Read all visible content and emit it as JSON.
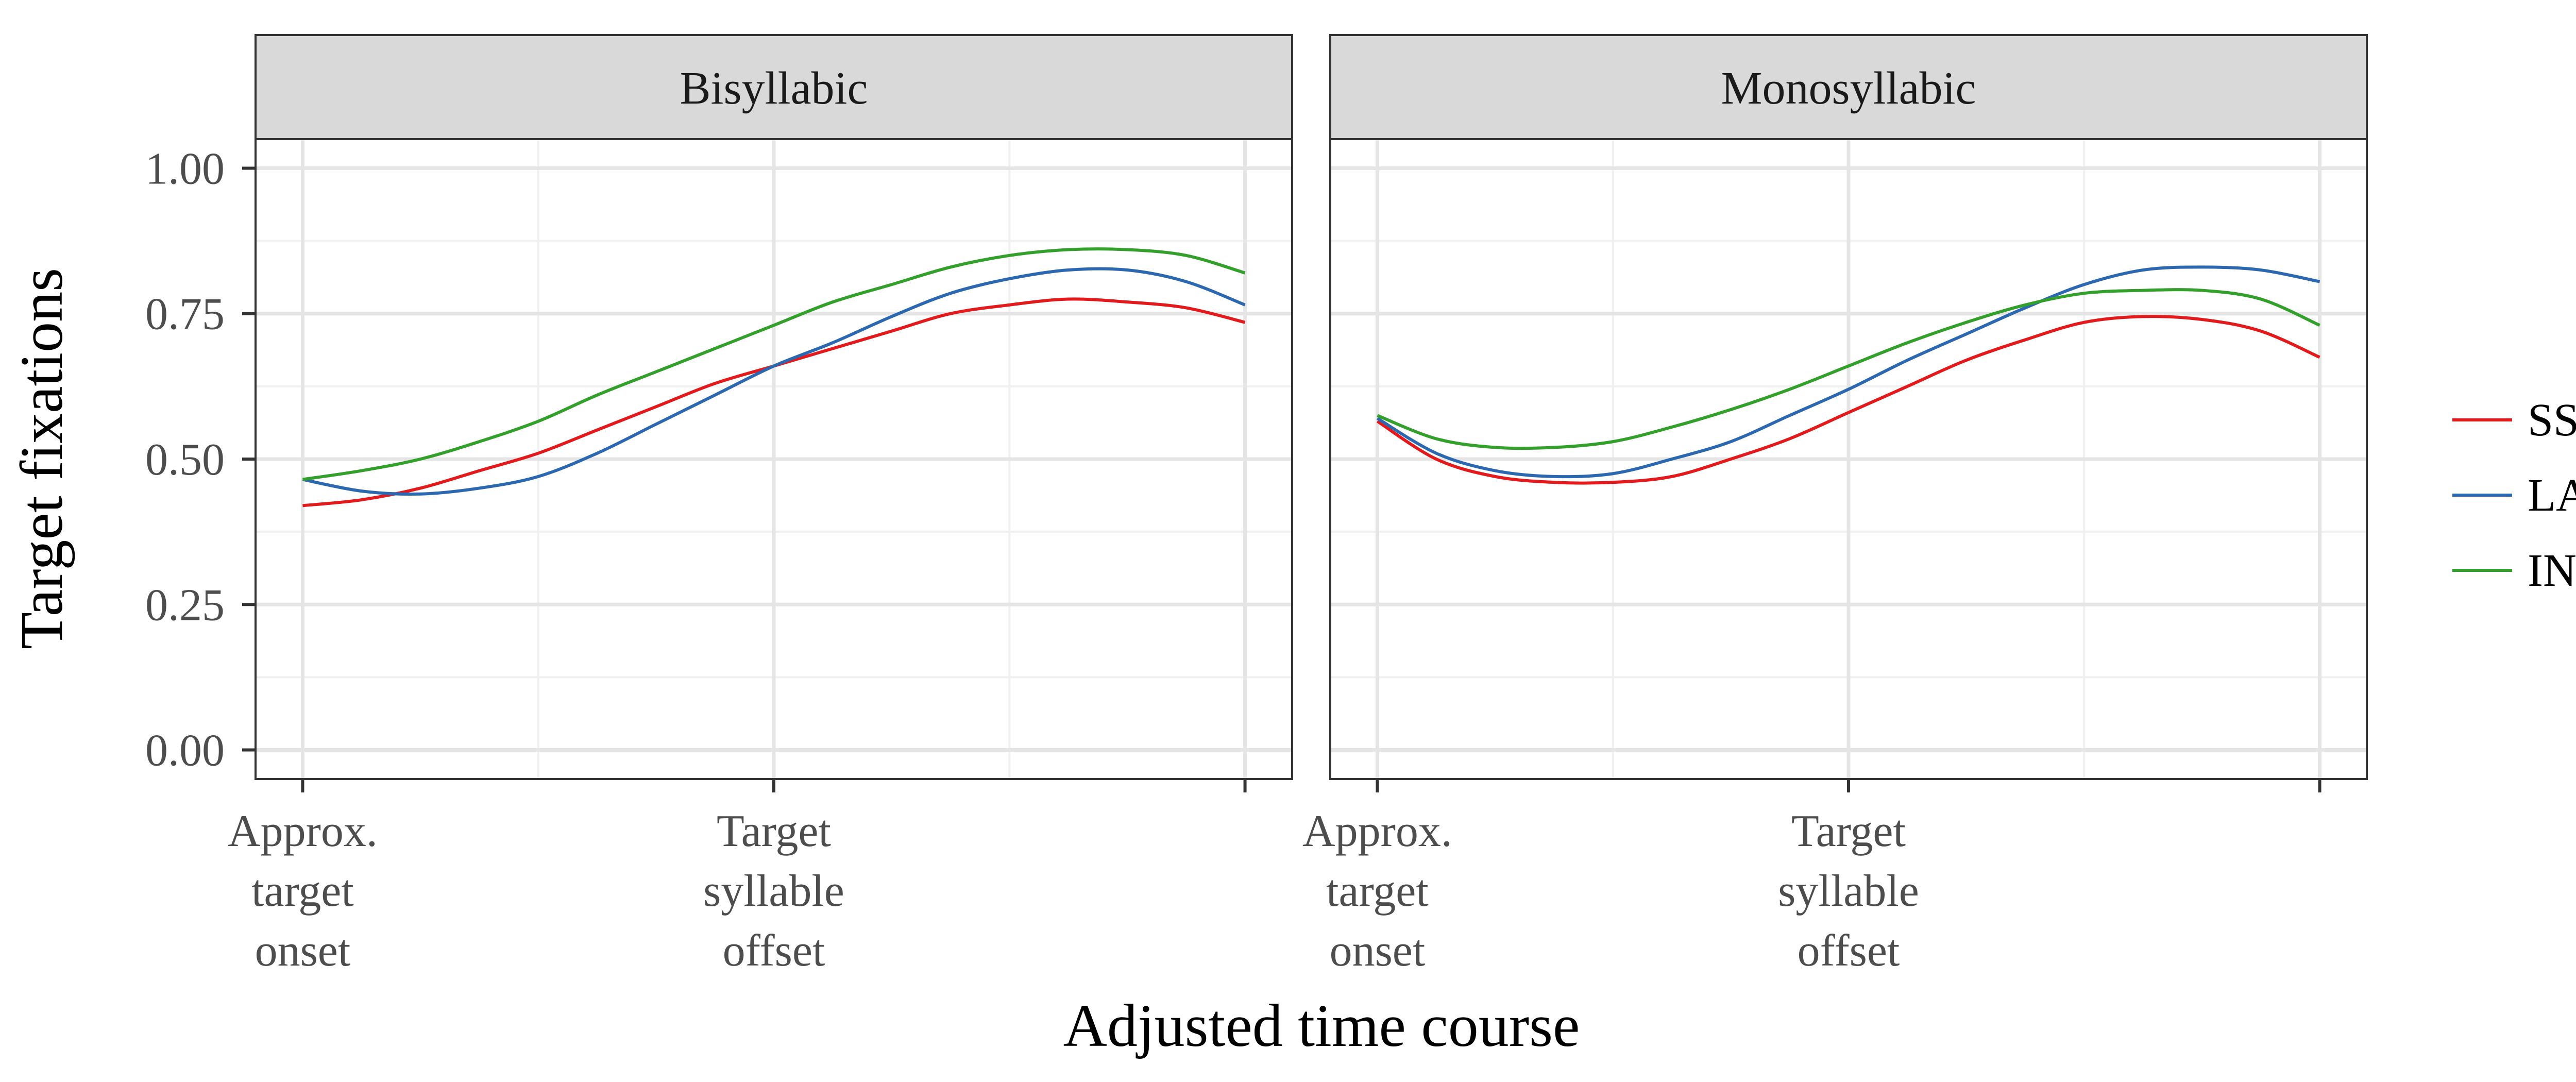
{
  "chart_data": {
    "type": "line",
    "xlabel": "Adjusted time course",
    "ylabel": "Target fixations",
    "ylim": [
      -0.05,
      1.05
    ],
    "xlim": [
      -0.1,
      2.1
    ],
    "y_ticks": [
      {
        "value": 0.0,
        "label": "0.00"
      },
      {
        "value": 0.25,
        "label": "0.25"
      },
      {
        "value": 0.5,
        "label": "0.50"
      },
      {
        "value": 0.75,
        "label": "0.75"
      },
      {
        "value": 1.0,
        "label": "1.00"
      }
    ],
    "x_ticks": [
      {
        "value": 0,
        "label": [
          "Approx.",
          "target",
          "onset"
        ]
      },
      {
        "value": 1,
        "label": [
          "Target",
          "syllable",
          "offset"
        ]
      },
      {
        "value": 2,
        "label": []
      }
    ],
    "grid": true,
    "legend_position": "right",
    "colors": {
      "SS": "#e31a1c",
      "LA": "#2c68b0",
      "IN": "#33a02c"
    },
    "panels": [
      {
        "title": "Bisyllabic",
        "x": [
          0,
          0.125,
          0.25,
          0.375,
          0.5,
          0.625,
          0.75,
          0.875,
          1.0,
          1.125,
          1.25,
          1.375,
          1.5,
          1.625,
          1.75,
          1.875,
          2.0
        ],
        "series": [
          {
            "name": "SS",
            "values": [
              0.42,
              0.43,
              0.45,
              0.48,
              0.51,
              0.55,
              0.59,
              0.63,
              0.66,
              0.69,
              0.72,
              0.75,
              0.765,
              0.775,
              0.77,
              0.76,
              0.735
            ]
          },
          {
            "name": "LA",
            "values": [
              0.465,
              0.445,
              0.44,
              0.45,
              0.47,
              0.51,
              0.56,
              0.61,
              0.66,
              0.7,
              0.745,
              0.785,
              0.81,
              0.825,
              0.825,
              0.805,
              0.765
            ]
          },
          {
            "name": "IN",
            "values": [
              0.465,
              0.48,
              0.5,
              0.53,
              0.565,
              0.61,
              0.65,
              0.69,
              0.73,
              0.77,
              0.8,
              0.83,
              0.85,
              0.86,
              0.86,
              0.85,
              0.82
            ]
          }
        ]
      },
      {
        "title": "Monosyllabic",
        "x": [
          0,
          0.125,
          0.25,
          0.375,
          0.5,
          0.625,
          0.75,
          0.875,
          1.0,
          1.125,
          1.25,
          1.375,
          1.5,
          1.625,
          1.75,
          1.875,
          2.0
        ],
        "series": [
          {
            "name": "SS",
            "values": [
              0.565,
              0.5,
              0.47,
              0.46,
              0.46,
              0.47,
              0.5,
              0.535,
              0.58,
              0.625,
              0.67,
              0.705,
              0.735,
              0.745,
              0.74,
              0.72,
              0.675
            ]
          },
          {
            "name": "LA",
            "values": [
              0.57,
              0.51,
              0.48,
              0.47,
              0.475,
              0.5,
              0.53,
              0.575,
              0.62,
              0.67,
              0.715,
              0.76,
              0.8,
              0.825,
              0.83,
              0.825,
              0.805
            ]
          },
          {
            "name": "IN",
            "values": [
              0.575,
              0.535,
              0.52,
              0.52,
              0.53,
              0.555,
              0.585,
              0.62,
              0.66,
              0.7,
              0.735,
              0.765,
              0.785,
              0.79,
              0.79,
              0.775,
              0.73
            ]
          }
        ]
      }
    ],
    "legend": [
      {
        "name": "SS"
      },
      {
        "name": "LA"
      },
      {
        "name": "IN"
      }
    ]
  }
}
